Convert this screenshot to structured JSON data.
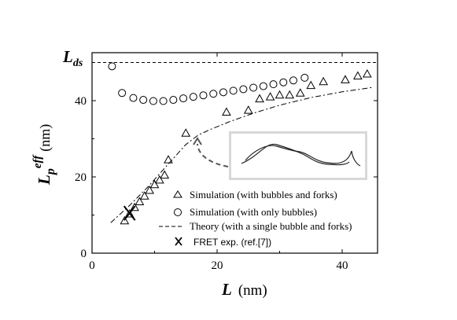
{
  "chart_data": {
    "type": "scatter",
    "title": "",
    "xlabel": {
      "symbol": "L",
      "unit": "(nm)"
    },
    "ylabel": {
      "symbol": "L",
      "subscript": "p",
      "superscript": "eff",
      "unit": "(nm)"
    },
    "xlim": [
      0,
      45
    ],
    "ylim": [
      0,
      52
    ],
    "xticks": [
      0,
      20,
      40
    ],
    "yticks": [
      0,
      20,
      40
    ],
    "reference_line": {
      "label_symbol": "L",
      "label_subscript": "ds",
      "y": 50
    },
    "series": [
      {
        "name": "Simulation (with bubbles and forks)",
        "marker": "triangle",
        "x": [
          5.2,
          6.0,
          6.8,
          7.6,
          8.4,
          9.2,
          10.0,
          10.8,
          11.6,
          12.2,
          15.0,
          21.5,
          25.0,
          26.8,
          28.5,
          30.0,
          31.6,
          33.3,
          35.0,
          37.0,
          40.5,
          42.5,
          44.0
        ],
        "y": [
          8.5,
          10.3,
          12.0,
          13.5,
          15.0,
          16.5,
          18.0,
          19.2,
          20.5,
          24.5,
          31.5,
          37.0,
          37.5,
          40.5,
          41.0,
          41.5,
          41.5,
          42.0,
          44.0,
          45.0,
          45.5,
          46.5,
          47.0
        ]
      },
      {
        "name": "Simulation (with only bubbles)",
        "marker": "circle",
        "x": [
          3.2,
          4.8,
          6.6,
          8.2,
          9.8,
          11.4,
          13.0,
          14.6,
          16.2,
          17.8,
          19.4,
          21.0,
          22.6,
          24.2,
          25.8,
          27.4,
          29.0,
          30.6,
          32.2,
          34.0
        ],
        "y": [
          49.0,
          42.0,
          40.7,
          40.2,
          39.9,
          39.9,
          40.2,
          40.6,
          41.0,
          41.4,
          41.8,
          42.2,
          42.6,
          43.0,
          43.4,
          43.8,
          44.3,
          44.8,
          45.3,
          46.0
        ]
      },
      {
        "name": "Theory (with a single bubble and forks)",
        "style": "dash-dot",
        "x": [
          3.0,
          6.0,
          9.0,
          12.0,
          15.0,
          17.0,
          19.0,
          22.0,
          26.0,
          30.0,
          35.0,
          40.0,
          45.0
        ],
        "y": [
          8.0,
          12.5,
          17.5,
          23.0,
          28.5,
          31.0,
          32.5,
          34.5,
          36.8,
          38.8,
          40.8,
          42.3,
          43.5
        ]
      },
      {
        "name": "FRET exp. (ref.[7])",
        "marker": "x",
        "x": [
          6.0
        ],
        "y": [
          10.5
        ]
      }
    ],
    "legend_position": "lower-right",
    "grid": false
  }
}
